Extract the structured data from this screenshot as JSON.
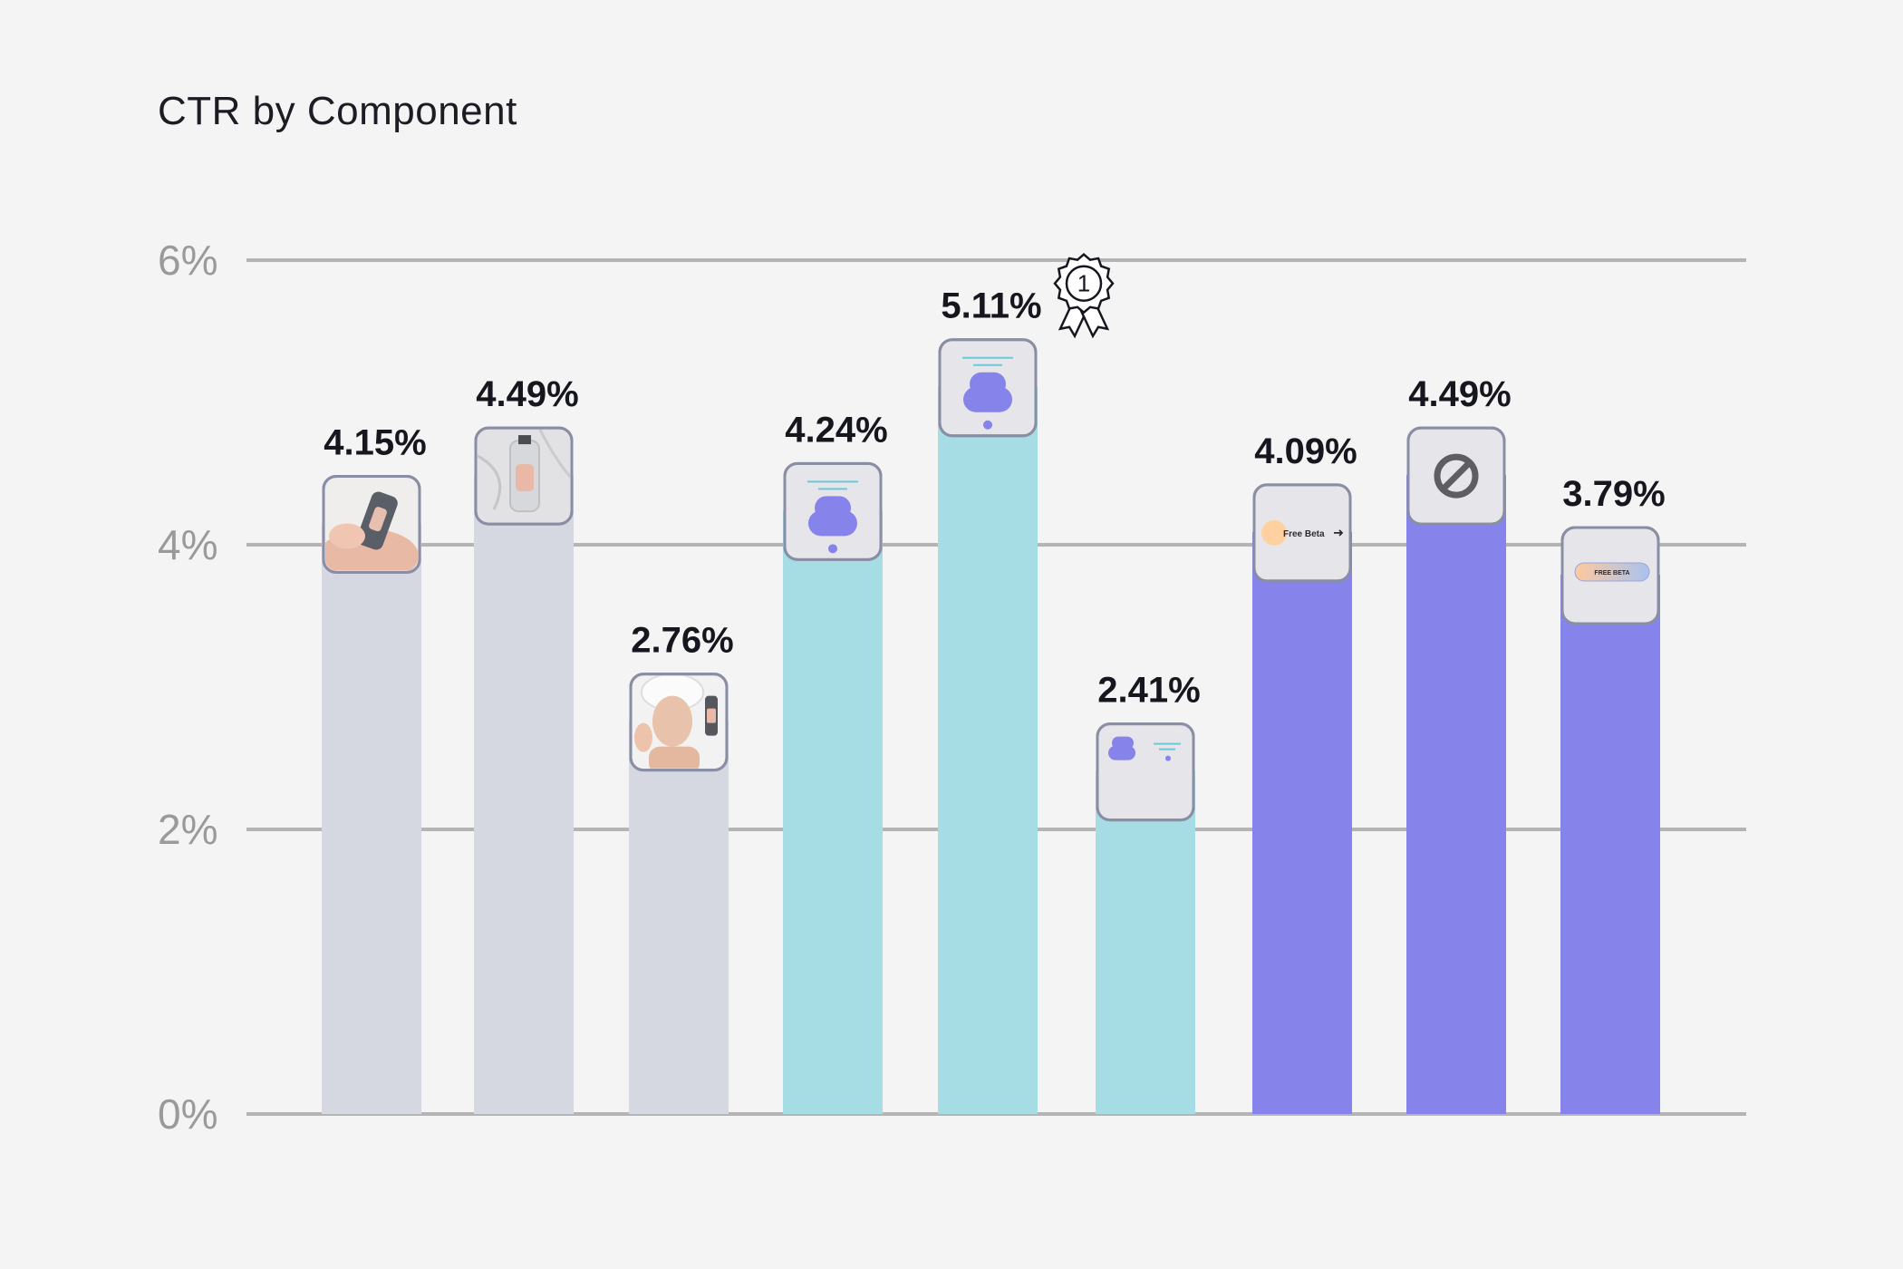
{
  "chart_data": {
    "type": "bar",
    "title": "CTR by Component",
    "xlabel": "",
    "ylabel": "",
    "ylim": [
      0,
      6
    ],
    "yticks": [
      0,
      2,
      4,
      6
    ],
    "ytick_labels": [
      "0%",
      "2%",
      "4%",
      "6%"
    ],
    "grid": true,
    "categories": [
      "Product in hands photo",
      "Product on marble photo",
      "Model with product photo",
      "Vertical card component",
      "Vertical card component (large)",
      "Horizontal card component",
      "Free Beta button",
      "No component",
      "FREE BETA gradient button"
    ],
    "values": [
      4.15,
      4.49,
      2.76,
      4.24,
      5.11,
      2.41,
      4.09,
      4.49,
      3.79
    ],
    "value_labels": [
      "4.15%",
      "4.49%",
      "2.76%",
      "4.24%",
      "5.11%",
      "2.41%",
      "4.09%",
      "4.49%",
      "3.79%"
    ],
    "bar_colors": [
      "#d5d7e1",
      "#d5d7e1",
      "#d5d7e1",
      "#a6dde5",
      "#a6dde5",
      "#a6dde5",
      "#8683ea",
      "#8683ea",
      "#8683ea"
    ],
    "thumbnails": [
      "hand-bottle-photo",
      "marble-bottle-photo",
      "woman-towel-photo",
      "vertical-card-icon",
      "vertical-card-icon",
      "horizontal-card-icon",
      "pill-button-preview",
      "no-entry-icon",
      "gradient-button-preview"
    ],
    "thumbnail_text": {
      "free_beta": "Free Beta",
      "free_beta_caps": "FREE BETA"
    },
    "winner_index": 4,
    "winner_badge": "award-ribbon-icon",
    "winner_badge_text": "1",
    "colors": {
      "background": "#f4f4f4",
      "grid": "#b4b4b4",
      "tick_text": "#9a9a9a",
      "label_text": "#16161e",
      "thumb_border": "#8a8ea4",
      "thumb_fill": "#e6e6ea"
    }
  }
}
